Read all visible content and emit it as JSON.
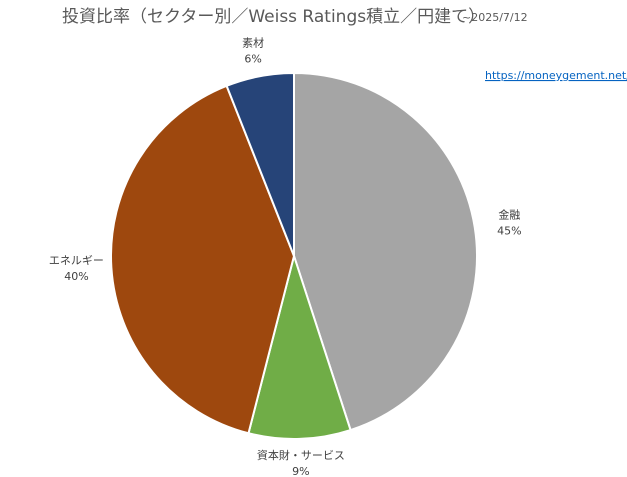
{
  "chart_data": {
    "type": "pie",
    "title": "投資比率（セクター別／Weiss Ratings積立／円建て）",
    "subtitle": "~2025/7/12",
    "annotation": "https://moneygement.net/",
    "categories": [
      "金融",
      "資本財・サービス",
      "エネルギー",
      "素材"
    ],
    "values": [
      45,
      9,
      40,
      6
    ],
    "value_labels": [
      "45%",
      "9%",
      "40%",
      "6%"
    ],
    "colors": [
      "#a5a5a5",
      "#70ad47",
      "#9e480e",
      "#264478"
    ]
  }
}
